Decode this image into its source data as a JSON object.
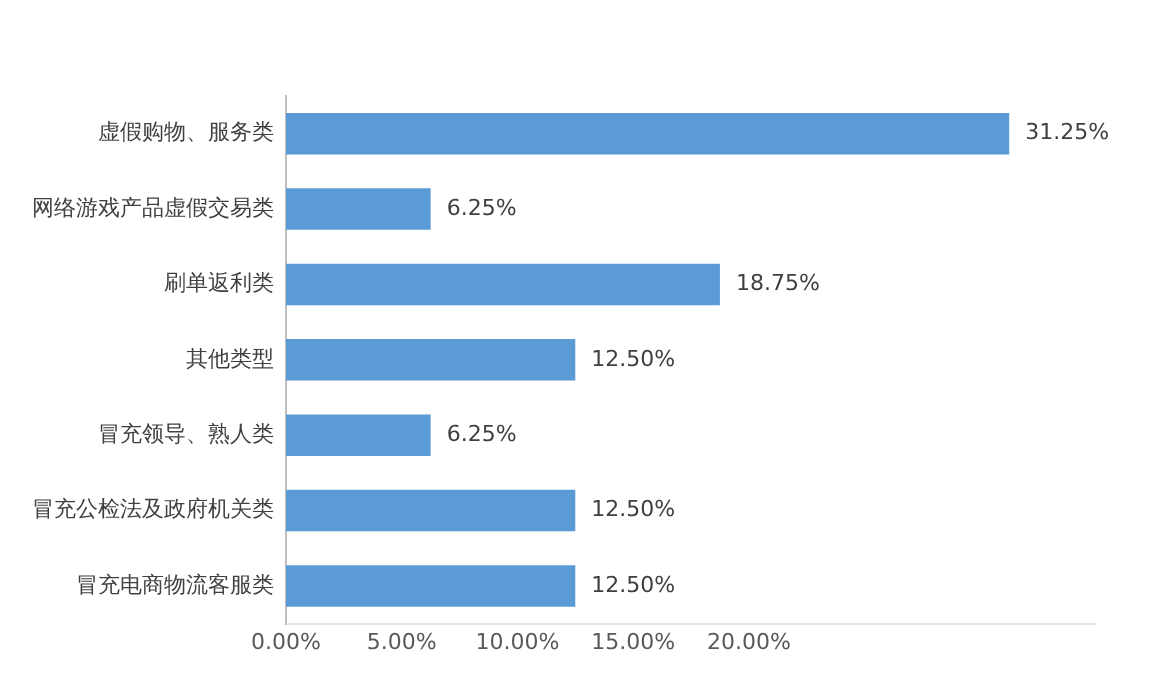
{
  "chart_data": {
    "type": "bar",
    "orientation": "horizontal",
    "categories": [
      "虚假购物、服务类",
      "网络游戏产品虚假交易类",
      "刷单返利类",
      "其他类型",
      "冒充领导、熟人类",
      "冒充公检法及政府机关类",
      "冒充电商物流客服类"
    ],
    "values": [
      31.25,
      6.25,
      18.75,
      12.5,
      6.25,
      12.5,
      12.5
    ],
    "value_labels": [
      "31.25%",
      "6.25%",
      "18.75%",
      "12.50%",
      "6.25%",
      "12.50%",
      "12.50%"
    ],
    "color": "#5b9bd5",
    "xlim": [
      0,
      35
    ],
    "xticks": [
      {
        "value": 0,
        "label": "0.00%"
      },
      {
        "value": 5,
        "label": "5.00%"
      },
      {
        "value": 10,
        "label": "10.00%"
      },
      {
        "value": 15,
        "label": "15.00%"
      },
      {
        "value": 20,
        "label": "20.00%"
      }
    ],
    "grid": false,
    "legend": false
  }
}
